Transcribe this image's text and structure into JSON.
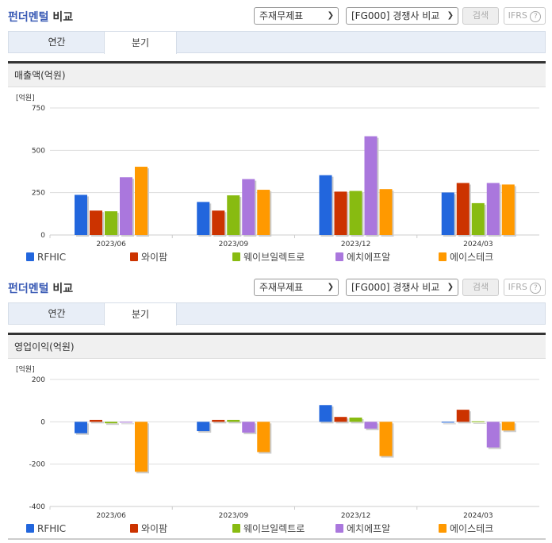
{
  "blocks": [
    {
      "title_hl": "펀더멘털",
      "title_rest": " 비교",
      "select1": "주재무제표",
      "select2": "[FG000] 경쟁사 비교",
      "search": "검색",
      "ifrs": "IFRS",
      "tabs": [
        "연간",
        "분기"
      ],
      "active_tab": 1,
      "section": "매출액(억원)"
    },
    {
      "title_hl": "펀더멘털",
      "title_rest": " 비교",
      "select1": "주재무제표",
      "select2": "[FG000] 경쟁사 비교",
      "search": "검색",
      "ifrs": "IFRS",
      "tabs": [
        "연간",
        "분기"
      ],
      "active_tab": 1,
      "section": "영업이익(억원)"
    }
  ],
  "chart_data": [
    {
      "type": "bar",
      "title": "매출액(억원)",
      "ylabel": "[억원]",
      "ylim": [
        0,
        750
      ],
      "yticks": [
        0,
        250,
        500,
        750
      ],
      "categories": [
        "2023/06",
        "2023/09",
        "2023/12",
        "2024/03"
      ],
      "series": [
        {
          "name": "RFHIC",
          "color": "#2266dd",
          "values": [
            237,
            195,
            353,
            251
          ]
        },
        {
          "name": "와이팜",
          "color": "#cc3300",
          "values": [
            144,
            144,
            256,
            307
          ]
        },
        {
          "name": "웨이브일렉트로",
          "color": "#88bb11",
          "values": [
            140,
            234,
            260,
            188
          ]
        },
        {
          "name": "에치에프알",
          "color": "#aa77dd",
          "values": [
            341,
            330,
            583,
            307
          ]
        },
        {
          "name": "에이스테크",
          "color": "#ff9900",
          "values": [
            403,
            267,
            271,
            298
          ]
        }
      ],
      "grid": true,
      "legend": "bottom"
    },
    {
      "type": "bar",
      "title": "영업이익(억원)",
      "ylabel": "[억원]",
      "ylim": [
        -400,
        200
      ],
      "yticks": [
        -400,
        -200,
        0,
        200
      ],
      "categories": [
        "2023/06",
        "2023/09",
        "2023/12",
        "2024/03"
      ],
      "series": [
        {
          "name": "RFHIC",
          "color": "#2266dd",
          "values": [
            -54,
            -44,
            79,
            -4
          ]
        },
        {
          "name": "와이팜",
          "color": "#cc3300",
          "values": [
            9,
            9,
            23,
            57
          ]
        },
        {
          "name": "웨이브일렉트로",
          "color": "#88bb11",
          "values": [
            -7,
            9,
            20,
            2
          ]
        },
        {
          "name": "에치에프알",
          "color": "#aa77dd",
          "values": [
            0,
            -51,
            -32,
            -121
          ]
        },
        {
          "name": "에이스테크",
          "color": "#ff9900",
          "values": [
            -236,
            -143,
            -162,
            -41
          ]
        }
      ],
      "grid": true,
      "legend": "bottom"
    }
  ]
}
